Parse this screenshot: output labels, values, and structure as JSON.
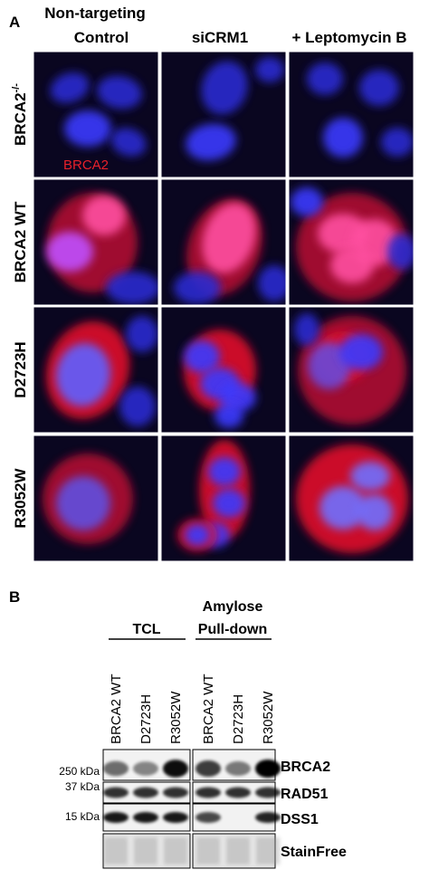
{
  "panel_a": {
    "label": "A",
    "column_headers": [
      {
        "lines": [
          "Non-targeting",
          "Control"
        ]
      },
      {
        "lines": [
          "siCRM1"
        ]
      },
      {
        "lines": [
          "+ Leptomycin B"
        ]
      }
    ],
    "row_labels": [
      {
        "text": "BRCA2",
        "sup": "-/-"
      },
      {
        "text": "BRCA2 WT"
      },
      {
        "text": "D2723H"
      },
      {
        "text": "R3052W"
      }
    ],
    "stain_label": "BRCA2"
  },
  "panel_b": {
    "label": "B",
    "groups": [
      {
        "lines": [
          "TCL"
        ],
        "lanes": [
          "BRCA2 WT",
          "D2723H",
          "R3052W"
        ]
      },
      {
        "lines": [
          "Amylose",
          "Pull-down"
        ],
        "lanes": [
          "BRCA2 WT",
          "D2723H",
          "R3052W"
        ]
      }
    ],
    "markers": [
      "250 kDa",
      "37 kDa",
      "15 kDa"
    ],
    "blots": [
      "BRCA2",
      "RAD51",
      "DSS1",
      "StainFree"
    ]
  }
}
